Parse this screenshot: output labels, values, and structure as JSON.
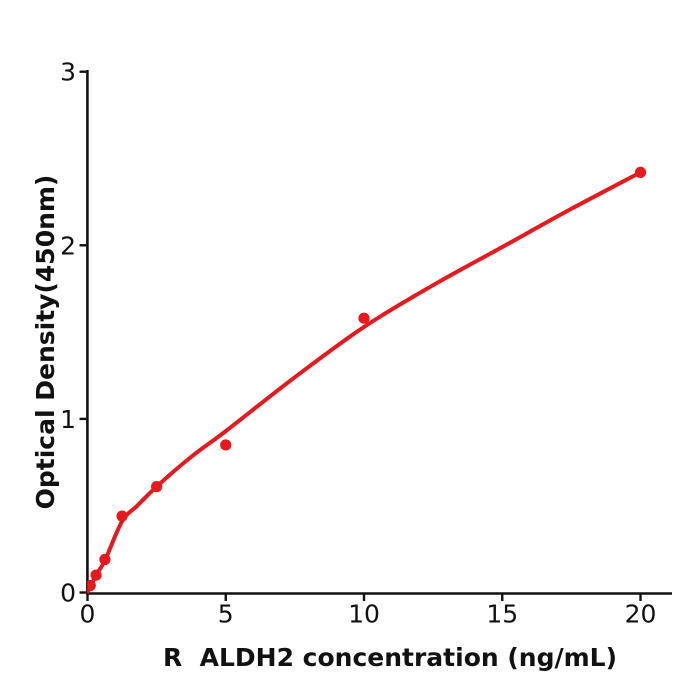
{
  "figure": {
    "background": "#ffffff"
  },
  "chart_data": {
    "type": "scatter",
    "title": "",
    "xlabel": "R  ALDH2 concentration (ng/mL)",
    "ylabel": "Optical Density(450nm)",
    "xlim": [
      0,
      21.2
    ],
    "ylim": [
      0,
      3
    ],
    "xticks": [
      0,
      5,
      10,
      15,
      20
    ],
    "yticks": [
      0,
      1,
      2,
      3
    ],
    "grid": false,
    "legend": null,
    "series": [
      {
        "name": "standard-points",
        "x": [
          0.1,
          0.31,
          0.63,
          1.25,
          2.5,
          5,
          10,
          20
        ],
        "y": [
          0.04,
          0.1,
          0.19,
          0.44,
          0.61,
          0.85,
          1.58,
          2.42
        ]
      }
    ],
    "fit_curve": [
      [
        0.02,
        0.005
      ],
      [
        0.16,
        0.05
      ],
      [
        0.31,
        0.1
      ],
      [
        0.63,
        0.185
      ],
      [
        1.25,
        0.41
      ],
      [
        1.8,
        0.5
      ],
      [
        2.5,
        0.61
      ],
      [
        3.7,
        0.775
      ],
      [
        5.0,
        0.93
      ],
      [
        7.5,
        1.24
      ],
      [
        10.0,
        1.53
      ],
      [
        12.5,
        1.77
      ],
      [
        15.0,
        1.99
      ],
      [
        17.5,
        2.21
      ],
      [
        20.0,
        2.42
      ]
    ],
    "point_color": "#e6191e",
    "line_color": "#e6191e",
    "axis_color": "#111111",
    "tick_font_size": 25
  }
}
